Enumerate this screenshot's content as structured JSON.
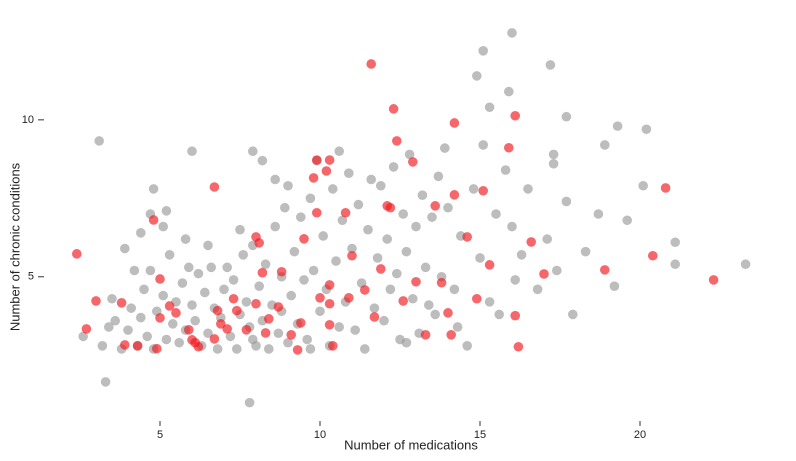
{
  "chart_data": {
    "type": "scatter",
    "xlabel": "Number of medications",
    "ylabel": "Number of chronic conditions",
    "xlim": [
      2,
      24
    ],
    "ylim": [
      0.5,
      13.5
    ],
    "xticks": [
      5,
      10,
      15,
      20
    ],
    "yticks": [
      5,
      10
    ],
    "series": [
      {
        "color": "#9a9a9a",
        "x": [
          3.1,
          3.3,
          7.8,
          16.0,
          15.1,
          14.9,
          17.2,
          15.9,
          15.3,
          19.3,
          20.2,
          18.9,
          17.7,
          17.3,
          17.3,
          20.1,
          19.6,
          21.1,
          21.1,
          23.3,
          19.2,
          17.9,
          18.3,
          18.7,
          17.7,
          6.0,
          7.9,
          4.8,
          5.2,
          4.7,
          3.6,
          3.8,
          4.0,
          4.1,
          4.3,
          4.4,
          4.5,
          4.6,
          4.7,
          4.8,
          4.9,
          5.1,
          5.2,
          5.3,
          5.4,
          5.5,
          5.6,
          5.7,
          5.8,
          5.9,
          6.0,
          6.1,
          6.2,
          6.3,
          6.4,
          6.5,
          6.6,
          6.7,
          6.8,
          6.9,
          3.4,
          3.9,
          4.2,
          2.6,
          3.2,
          4.4,
          5.1,
          5.8,
          6.5,
          3.5,
          7.0,
          7.1,
          7.2,
          7.3,
          7.4,
          7.5,
          7.6,
          7.7,
          7.8,
          7.9,
          8.0,
          8.1,
          8.2,
          8.3,
          8.4,
          8.5,
          8.6,
          8.7,
          8.8,
          8.9,
          9.0,
          9.1,
          9.2,
          9.3,
          9.4,
          9.5,
          9.6,
          9.7,
          9.8,
          9.9,
          10.0,
          10.1,
          10.2,
          10.3,
          10.4,
          10.5,
          10.6,
          10.7,
          10.8,
          10.9,
          8.6,
          8.2,
          7.5,
          9.0,
          10.6,
          8.8,
          9.7,
          7.9,
          11.0,
          11.1,
          11.2,
          11.3,
          11.4,
          11.5,
          11.6,
          11.7,
          11.8,
          11.9,
          12.0,
          12.1,
          12.2,
          12.3,
          12.4,
          12.5,
          12.6,
          12.7,
          12.8,
          12.9,
          13.0,
          13.1,
          13.2,
          13.3,
          13.4,
          13.5,
          13.6,
          13.7,
          13.8,
          14.0,
          14.2,
          14.4,
          14.6,
          14.8,
          15.0,
          15.1,
          15.3,
          15.5,
          15.6,
          15.8,
          16.0,
          16.1,
          16.3,
          16.5,
          16.8,
          17.1,
          17.4,
          14.3,
          13.9,
          12.7
        ],
        "values": [
          9.33,
          1.65,
          0.99,
          12.77,
          12.2,
          11.4,
          11.75,
          10.9,
          10.4,
          9.8,
          9.7,
          9.2,
          10.1,
          8.9,
          8.6,
          7.9,
          6.8,
          6.1,
          5.4,
          5.4,
          4.7,
          3.8,
          5.8,
          7.0,
          7.4,
          9.0,
          9.0,
          7.8,
          7.1,
          7.0,
          3.6,
          2.7,
          3.3,
          4.0,
          2.8,
          3.7,
          4.6,
          3.1,
          5.2,
          2.7,
          3.9,
          4.4,
          3.0,
          5.7,
          3.5,
          4.2,
          2.9,
          4.8,
          3.3,
          5.3,
          4.1,
          3.6,
          5.1,
          2.8,
          4.5,
          3.2,
          5.3,
          4.0,
          2.7,
          3.7,
          3.4,
          5.9,
          5.2,
          3.1,
          2.8,
          6.4,
          6.6,
          6.2,
          6.0,
          4.3,
          4.6,
          5.3,
          3.1,
          4.9,
          2.7,
          3.8,
          5.7,
          4.2,
          3.4,
          6.0,
          2.8,
          4.7,
          3.6,
          5.4,
          2.7,
          4.1,
          6.6,
          3.2,
          5.0,
          7.2,
          2.9,
          4.4,
          5.8,
          3.5,
          6.9,
          4.9,
          3.0,
          7.5,
          5.2,
          8.7,
          3.9,
          6.3,
          4.6,
          2.8,
          7.8,
          5.5,
          3.4,
          6.8,
          4.2,
          8.3,
          8.1,
          8.7,
          6.5,
          7.9,
          9.0,
          3.9,
          2.7,
          3.0,
          5.9,
          3.3,
          7.3,
          4.8,
          2.7,
          6.5,
          8.1,
          4.0,
          5.6,
          7.9,
          3.6,
          6.2,
          4.6,
          8.5,
          5.1,
          3.0,
          7.0,
          5.8,
          8.9,
          4.3,
          6.6,
          3.2,
          7.6,
          5.3,
          4.1,
          6.9,
          3.8,
          8.2,
          5.0,
          7.2,
          4.6,
          6.3,
          2.8,
          7.8,
          5.6,
          9.2,
          4.2,
          7.0,
          3.8,
          8.4,
          6.6,
          4.9,
          5.7,
          7.8,
          4.6,
          6.2,
          5.2,
          3.4,
          9.1,
          2.9
        ]
      },
      {
        "color": "#f0161a",
        "x": [
          2.4,
          2.7,
          3.0,
          3.8,
          3.9,
          4.3,
          4.8,
          5.0,
          4.9,
          5.0,
          5.3,
          5.5,
          5.9,
          6.0,
          6.1,
          6.2,
          6.7,
          6.7,
          6.8,
          6.9,
          7.1,
          7.3,
          7.4,
          7.7,
          8.0,
          8.0,
          8.1,
          8.2,
          8.3,
          8.4,
          8.7,
          8.8,
          9.1,
          9.3,
          9.4,
          9.5,
          9.8,
          9.9,
          9.9,
          10.0,
          10.2,
          10.3,
          10.3,
          10.3,
          10.3,
          10.4,
          10.8,
          10.9,
          11.0,
          11.4,
          11.6,
          11.7,
          11.9,
          12.1,
          12.2,
          12.3,
          12.4,
          12.6,
          12.9,
          13.0,
          13.3,
          13.6,
          13.8,
          14.0,
          14.1,
          14.2,
          14.2,
          14.6,
          14.9,
          15.1,
          15.3,
          15.9,
          16.1,
          16.1,
          16.2,
          16.6,
          17.0,
          18.9,
          20.4,
          20.8,
          22.3
        ],
        "values": [
          5.73,
          3.34,
          4.23,
          4.17,
          2.83,
          2.8,
          6.81,
          4.93,
          2.71,
          3.69,
          4.07,
          3.85,
          3.31,
          2.99,
          2.9,
          2.77,
          7.86,
          3.02,
          3.92,
          3.5,
          3.34,
          4.3,
          3.92,
          3.31,
          6.27,
          4.14,
          6.08,
          5.13,
          3.21,
          3.66,
          4.04,
          5.16,
          3.15,
          2.67,
          3.53,
          6.21,
          8.15,
          8.72,
          7.04,
          4.33,
          8.37,
          4.74,
          8.72,
          4.14,
          3.47,
          2.8,
          7.04,
          4.33,
          5.67,
          4.58,
          11.78,
          3.72,
          5.25,
          7.26,
          7.2,
          10.35,
          9.33,
          4.23,
          8.66,
          4.84,
          3.15,
          7.26,
          4.81,
          3.85,
          3.15,
          7.61,
          9.9,
          6.27,
          4.3,
          7.74,
          5.38,
          9.11,
          10.13,
          3.76,
          2.77,
          6.11,
          5.09,
          5.22,
          5.67,
          7.83,
          4.9
        ]
      }
    ]
  }
}
